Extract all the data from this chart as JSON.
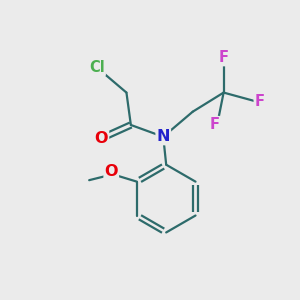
{
  "background_color": "#EBEBEB",
  "bond_color": "#2D6B6B",
  "bond_width": 1.6,
  "atom_colors": {
    "Cl": "#4CAF50",
    "O_carbonyl": "#E8000A",
    "N": "#2222CC",
    "F": "#CC44CC",
    "O_methoxy": "#E8000A"
  },
  "font_size_atom": 11.5,
  "font_size_F": 10.5,
  "font_size_Cl": 10.5
}
